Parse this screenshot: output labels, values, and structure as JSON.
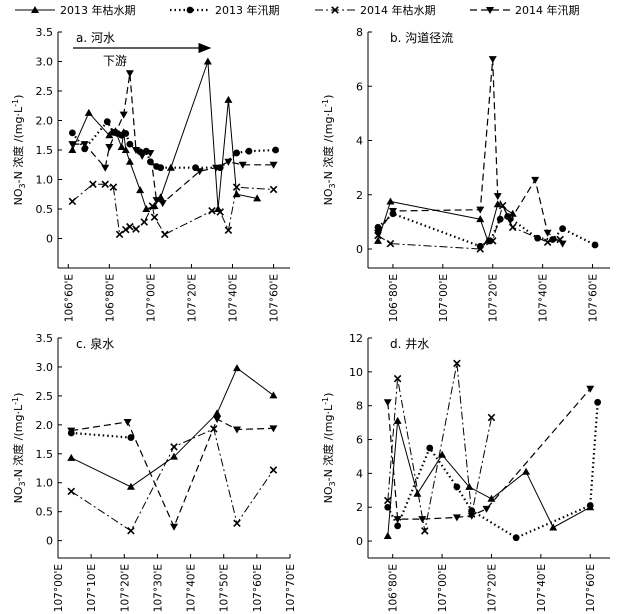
{
  "legend": [
    {
      "label": "2013 年枯水期",
      "marker": "triangle-up",
      "dash": "solid"
    },
    {
      "label": "2013 年汛期",
      "marker": "circle",
      "dash": "dotted"
    },
    {
      "label": "2014 年枯水期",
      "marker": "x",
      "dash": "dashdot"
    },
    {
      "label": "2014 年汛期",
      "marker": "triangle-down",
      "dash": "dashed"
    }
  ],
  "ylabel_main": "NO",
  "ylabel_sub": "3",
  "ylabel_rest": "-N 浓度 /(mg·L",
  "ylabel_sup": "-1",
  "ylabel_close": ")",
  "chart_data": [
    {
      "type": "line",
      "panel": "a",
      "title": "a. 河水",
      "annotation": "下游",
      "ylim": [
        -0.5,
        3.5
      ],
      "yticks": [
        0,
        0.5,
        1.0,
        1.5,
        2.0,
        2.5,
        3.0,
        3.5
      ],
      "ytick_labels": [
        "0",
        "0.5",
        "1.0",
        "1.5",
        "2.0",
        "2.5",
        "3.0",
        "3.5"
      ],
      "xlim": [
        106.55,
        107.68
      ],
      "xticks": [
        106.6,
        106.8,
        107.0,
        107.2,
        107.4,
        107.6
      ],
      "xtick_labels": [
        "106°60'E",
        "106°80'E",
        "107°00'E",
        "107°20'E",
        "107°40'E",
        "107°60'E"
      ],
      "series": [
        {
          "name": "2013 年枯水期",
          "x": [
            106.62,
            106.7,
            106.8,
            106.83,
            106.86,
            106.87,
            106.88,
            106.9,
            106.95,
            106.98,
            107.02,
            107.05,
            107.1,
            107.28,
            107.33,
            107.38,
            107.42,
            107.52
          ],
          "y": [
            1.5,
            2.13,
            1.75,
            1.82,
            1.55,
            1.8,
            1.5,
            1.3,
            0.82,
            0.5,
            0.55,
            0.7,
            1.2,
            3.0,
            0.5,
            2.35,
            0.75,
            0.68
          ]
        },
        {
          "name": "2013 年汛期",
          "x": [
            106.62,
            106.68,
            106.79,
            106.82,
            106.84,
            106.86,
            106.88,
            106.9,
            106.95,
            106.98,
            107.0,
            107.03,
            107.05,
            107.22,
            107.34,
            107.42,
            107.48,
            107.61
          ],
          "y": [
            1.79,
            1.52,
            1.98,
            1.8,
            1.78,
            1.75,
            1.78,
            1.6,
            1.47,
            1.48,
            1.3,
            1.22,
            1.2,
            1.2,
            1.2,
            1.45,
            1.48,
            1.5
          ]
        },
        {
          "name": "2014 年枯水期",
          "x": [
            106.62,
            106.72,
            106.78,
            106.82,
            106.85,
            106.88,
            106.9,
            106.93,
            106.97,
            107.01,
            107.02,
            107.07,
            107.3,
            107.34,
            107.38,
            107.42,
            107.6
          ],
          "y": [
            0.63,
            0.92,
            0.92,
            0.87,
            0.07,
            0.15,
            0.2,
            0.16,
            0.28,
            0.55,
            0.36,
            0.07,
            0.47,
            0.45,
            0.14,
            0.87,
            0.83
          ]
        },
        {
          "name": "2014 年汛期",
          "x": [
            106.62,
            106.68,
            106.78,
            106.8,
            106.87,
            106.9,
            106.93,
            106.96,
            107.0,
            107.03,
            107.06,
            107.24,
            107.32,
            107.38,
            107.45,
            107.6
          ],
          "y": [
            1.6,
            1.6,
            1.2,
            1.55,
            2.1,
            2.8,
            1.5,
            1.4,
            1.45,
            0.65,
            0.6,
            1.14,
            1.2,
            1.3,
            1.25,
            1.25
          ]
        }
      ]
    },
    {
      "type": "line",
      "panel": "b",
      "title": "b. 沟道径流",
      "ylim": [
        -0.7,
        8
      ],
      "yticks": [
        0,
        2,
        4,
        6,
        8
      ],
      "ytick_labels": [
        "0",
        "2",
        "4",
        "6",
        "8"
      ],
      "xlim": [
        106.7,
        107.67
      ],
      "xticks": [
        106.8,
        107.0,
        107.2,
        107.4,
        107.6
      ],
      "xtick_labels": [
        "106°80'E",
        "107°00'E",
        "107°20'E",
        "107°40'E",
        "107°60'E"
      ],
      "series": [
        {
          "name": "2013 年枯水期",
          "x": [
            106.74,
            106.79,
            107.15,
            107.18,
            107.22,
            107.28
          ],
          "y": [
            0.3,
            1.75,
            1.1,
            0.3,
            1.65,
            1.3
          ]
        },
        {
          "name": "2013 年汛期",
          "x": [
            106.74,
            106.8,
            107.15,
            107.19,
            107.23,
            107.26,
            107.38,
            107.44,
            107.48,
            107.61
          ],
          "y": [
            0.8,
            1.3,
            0.1,
            0.3,
            1.1,
            1.2,
            0.4,
            0.35,
            0.75,
            0.15
          ]
        },
        {
          "name": "2014 年枯水期",
          "x": [
            106.74,
            106.79,
            107.15,
            107.2,
            107.24,
            107.28,
            107.42,
            107.47
          ],
          "y": [
            0.5,
            0.2,
            0.0,
            0.3,
            1.6,
            0.8,
            0.25,
            0.35
          ]
        },
        {
          "name": "2014 年汛期",
          "x": [
            106.74,
            106.8,
            107.15,
            107.2,
            107.22,
            107.27,
            107.37,
            107.42,
            107.48
          ],
          "y": [
            0.6,
            1.4,
            1.45,
            7.0,
            1.95,
            1.05,
            2.55,
            0.6,
            0.2
          ]
        }
      ]
    },
    {
      "type": "line",
      "panel": "c",
      "title": "c. 泉水",
      "ylim": [
        -0.3,
        3.5
      ],
      "yticks": [
        0,
        0.5,
        1.0,
        1.5,
        2.0,
        2.5,
        3.0,
        3.5
      ],
      "ytick_labels": [
        "0",
        "0.5",
        "1.0",
        "1.5",
        "2.0",
        "2.5",
        "3.0",
        "3.5"
      ],
      "xlim": [
        107.0,
        107.7
      ],
      "xticks": [
        107.0,
        107.1,
        107.2,
        107.3,
        107.4,
        107.5,
        107.6,
        107.7
      ],
      "xtick_labels": [
        "107°00'E",
        "107°10'E",
        "107°20'E",
        "107°30'E",
        "107°40'E",
        "107°50'E",
        "107°60'E",
        "107°70'E"
      ],
      "series": [
        {
          "name": "2013 年枯水期",
          "x": [
            107.04,
            107.22,
            107.35,
            107.48,
            107.54,
            107.65
          ],
          "y": [
            1.43,
            0.93,
            1.45,
            2.2,
            2.98,
            2.51
          ]
        },
        {
          "name": "2013 年汛期",
          "x": [
            107.04,
            107.22
          ],
          "y": [
            1.86,
            1.78
          ]
        },
        {
          "name": "2014 年枯水期",
          "x": [
            107.04,
            107.22,
            107.35,
            107.47,
            107.54,
            107.65
          ],
          "y": [
            0.85,
            0.17,
            1.62,
            1.93,
            0.3,
            1.22
          ]
        },
        {
          "name": "2014 年汛期",
          "x": [
            107.04,
            107.21,
            107.35,
            107.48,
            107.54,
            107.65
          ],
          "y": [
            1.9,
            2.05,
            0.24,
            2.1,
            1.92,
            1.94
          ]
        }
      ]
    },
    {
      "type": "line",
      "panel": "d",
      "title": "d. 井水",
      "ylim": [
        -1,
        12
      ],
      "yticks": [
        0,
        2,
        4,
        6,
        8,
        10,
        12
      ],
      "ytick_labels": [
        "0",
        "2",
        "4",
        "6",
        "8",
        "10",
        "12"
      ],
      "xlim": [
        106.7,
        107.68
      ],
      "xticks": [
        106.8,
        107.0,
        107.2,
        107.4,
        107.6
      ],
      "xtick_labels": [
        "106°80'E",
        "107°00'E",
        "107°20'E",
        "107°40'E",
        "107°60'E"
      ],
      "series": [
        {
          "name": "2013 年枯水期",
          "x": [
            106.78,
            106.82,
            106.9,
            107.0,
            107.11,
            107.2,
            107.34,
            107.45,
            107.6
          ],
          "y": [
            0.3,
            7.1,
            2.8,
            5.1,
            3.2,
            2.5,
            4.1,
            0.8,
            2.0
          ]
        },
        {
          "name": "2013 年汛期",
          "x": [
            106.78,
            106.82,
            106.95,
            107.06,
            107.12,
            107.3,
            107.6,
            107.63
          ],
          "y": [
            2.0,
            0.9,
            5.5,
            3.2,
            1.8,
            0.2,
            2.1,
            8.2
          ]
        },
        {
          "name": "2014 年枯水期",
          "x": [
            106.78,
            106.82,
            106.93,
            107.06,
            107.12,
            107.2
          ],
          "y": [
            2.4,
            9.6,
            0.6,
            10.5,
            1.6,
            7.3
          ]
        },
        {
          "name": "2014 年汛期",
          "x": [
            106.78,
            106.82,
            106.92,
            107.06,
            107.12,
            107.18,
            107.6
          ],
          "y": [
            8.2,
            1.3,
            1.3,
            1.4,
            1.5,
            1.9,
            9.0
          ]
        }
      ]
    }
  ]
}
